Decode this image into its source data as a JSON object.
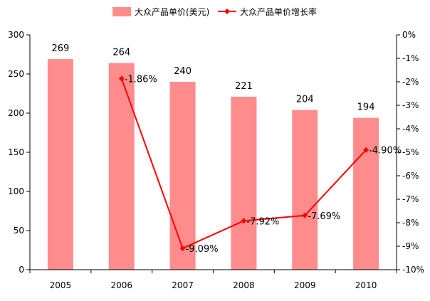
{
  "chart_data": {
    "type": "bar+line",
    "categories": [
      "2005",
      "2006",
      "2007",
      "2008",
      "2009",
      "2010"
    ],
    "series": [
      {
        "name": "大众产品单价(美元)",
        "type": "bar",
        "axis": "left",
        "color": "#FF8C8C",
        "values": [
          269,
          264,
          240,
          221,
          204,
          194
        ],
        "data_labels": [
          "269",
          "264",
          "240",
          "221",
          "204",
          "194"
        ]
      },
      {
        "name": "大众产品单价增长率",
        "type": "line",
        "axis": "right",
        "color": "#FF0000",
        "values": [
          null,
          -1.86,
          -9.09,
          -7.92,
          -7.69,
          -4.9
        ],
        "data_labels": [
          "",
          "-1.86%",
          "-9.09%",
          "-7.92%",
          "-7.69%",
          "-4.90%"
        ]
      }
    ],
    "y_left": {
      "range": [
        0,
        300
      ],
      "ticks": [
        0,
        50,
        100,
        150,
        200,
        250,
        300
      ],
      "tick_labels": [
        "0",
        "50",
        "100",
        "150",
        "200",
        "250",
        "300"
      ]
    },
    "y_right": {
      "range": [
        -10,
        0
      ],
      "ticks": [
        0,
        -1,
        -2,
        -3,
        -4,
        -5,
        -6,
        -7,
        -8,
        -9,
        -10
      ],
      "tick_labels": [
        "0%",
        "-1%",
        "-2%",
        "-3%",
        "-4%",
        "-5%",
        "-6%",
        "-7%",
        "-8%",
        "-9%",
        "-10%"
      ]
    },
    "grid": false,
    "legend_position": "top"
  }
}
